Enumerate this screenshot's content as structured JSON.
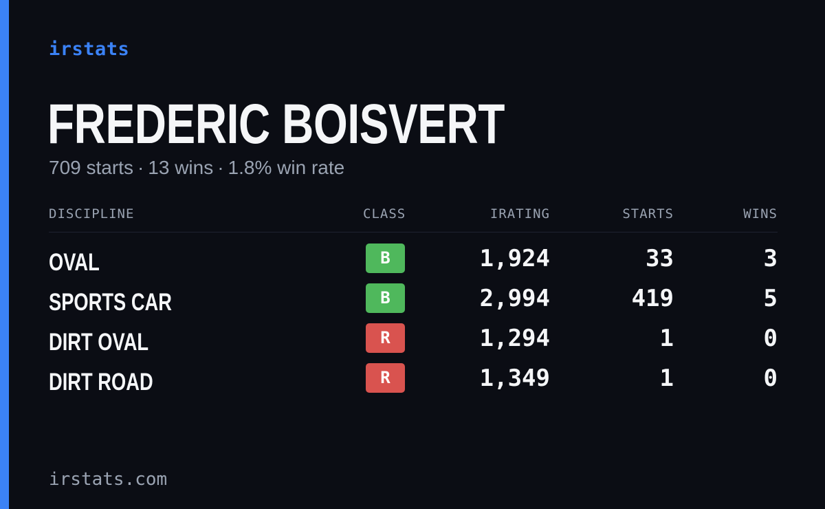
{
  "brand": "irstats",
  "driver": {
    "name": "FREDERIC BOISVERT",
    "summary": {
      "starts": "709 starts",
      "wins": "13 wins",
      "win_rate": "1.8% win rate",
      "separator": "·"
    }
  },
  "table": {
    "headers": {
      "discipline": "DISCIPLINE",
      "class": "CLASS",
      "irating": "IRATING",
      "starts": "STARTS",
      "wins": "WINS"
    },
    "rows": [
      {
        "discipline": "OVAL",
        "class": "B",
        "class_color": "#4fb85c",
        "irating": "1,924",
        "starts": "33",
        "wins": "3"
      },
      {
        "discipline": "SPORTS CAR",
        "class": "B",
        "class_color": "#4fb85c",
        "irating": "2,994",
        "starts": "419",
        "wins": "5"
      },
      {
        "discipline": "DIRT OVAL",
        "class": "R",
        "class_color": "#d9534f",
        "irating": "1,294",
        "starts": "1",
        "wins": "0"
      },
      {
        "discipline": "DIRT ROAD",
        "class": "R",
        "class_color": "#d9534f",
        "irating": "1,349",
        "starts": "1",
        "wins": "0"
      }
    ]
  },
  "footer": "irstats.com",
  "colors": {
    "accent": "#3b82f6",
    "background": "#0b0d14",
    "muted_text": "#9aa3b2"
  }
}
